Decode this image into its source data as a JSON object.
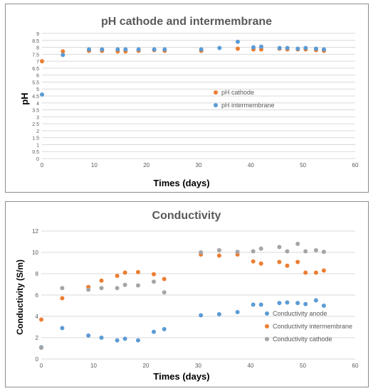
{
  "chart_data": [
    {
      "type": "scatter",
      "title": "pH cathode and intermembrane",
      "xlabel": "Times (days)",
      "ylabel": "pH",
      "xlim": [
        0,
        60
      ],
      "ylim": [
        0,
        9
      ],
      "x_ticks": [
        "0",
        "10",
        "20",
        "30",
        "40",
        "50",
        "60"
      ],
      "y_ticks": [
        "0",
        "0.5",
        "1",
        "1.5",
        "2",
        "2.5",
        "3",
        "3.5",
        "4",
        "4.5",
        "5",
        "5.5",
        "6",
        "6.5",
        "7",
        "7.5",
        "8",
        "8.5",
        "9"
      ],
      "grid": "horizontal",
      "legend_position": "center-right",
      "series": [
        {
          "name": "pH cathode",
          "color": "#ED7D31",
          "points": [
            [
              0,
              7.0
            ],
            [
              4,
              7.7
            ],
            [
              9,
              7.75
            ],
            [
              11.5,
              7.75
            ],
            [
              14.5,
              7.7
            ],
            [
              16,
              7.7
            ],
            [
              18.5,
              7.75
            ],
            [
              21.5,
              7.8
            ],
            [
              23.5,
              7.75
            ],
            [
              30.5,
              7.75
            ],
            [
              37.5,
              7.9
            ],
            [
              40.5,
              7.85
            ],
            [
              42,
              7.85
            ],
            [
              45.5,
              7.9
            ],
            [
              47,
              7.85
            ],
            [
              49,
              7.85
            ],
            [
              50.5,
              7.85
            ],
            [
              52.5,
              7.8
            ],
            [
              54,
              7.75
            ]
          ]
        },
        {
          "name": "pH intermembrane",
          "color": "#5B9BD5",
          "points": [
            [
              0,
              4.6
            ],
            [
              4,
              7.45
            ],
            [
              9,
              7.85
            ],
            [
              11.5,
              7.85
            ],
            [
              14.5,
              7.85
            ],
            [
              16,
              7.85
            ],
            [
              18.5,
              7.85
            ],
            [
              21.5,
              7.85
            ],
            [
              23.5,
              7.85
            ],
            [
              30.5,
              7.85
            ],
            [
              34,
              7.95
            ],
            [
              37.5,
              8.4
            ],
            [
              40.5,
              8.0
            ],
            [
              42,
              8.05
            ],
            [
              45.5,
              7.95
            ],
            [
              47,
              7.95
            ],
            [
              49,
              7.9
            ],
            [
              50.5,
              7.95
            ],
            [
              52.5,
              7.9
            ],
            [
              54,
              7.85
            ]
          ]
        }
      ]
    },
    {
      "type": "scatter",
      "title": "Conductivity",
      "xlabel": "Times (days)",
      "ylabel": "Conductivity (S/m)",
      "xlim": [
        0,
        60
      ],
      "ylim": [
        0,
        12
      ],
      "x_ticks": [
        "0",
        "10",
        "20",
        "30",
        "40",
        "50",
        "60"
      ],
      "y_ticks": [
        "0",
        "2",
        "4",
        "6",
        "8",
        "10",
        "12"
      ],
      "grid": "horizontal",
      "legend_position": "bottom-right",
      "series": [
        {
          "name": "Conductivity anode",
          "color": "#5B9BD5",
          "points": [
            [
              0,
              1.1
            ],
            [
              4,
              2.9
            ],
            [
              9,
              2.2
            ],
            [
              11.5,
              2.0
            ],
            [
              14.5,
              1.75
            ],
            [
              16,
              1.9
            ],
            [
              18.5,
              1.75
            ],
            [
              21.5,
              2.55
            ],
            [
              23.5,
              2.8
            ],
            [
              30.5,
              4.1
            ],
            [
              34,
              4.2
            ],
            [
              37.5,
              4.4
            ],
            [
              40.5,
              5.1
            ],
            [
              42,
              5.1
            ],
            [
              45.5,
              5.25
            ],
            [
              47,
              5.3
            ],
            [
              49,
              5.25
            ],
            [
              50.5,
              5.15
            ],
            [
              52.5,
              5.5
            ],
            [
              54,
              5.0
            ]
          ]
        },
        {
          "name": "Conductivity intermembrane",
          "color": "#ED7D31",
          "points": [
            [
              0,
              3.7
            ],
            [
              4,
              5.7
            ],
            [
              9,
              6.75
            ],
            [
              11.5,
              7.35
            ],
            [
              14.5,
              7.8
            ],
            [
              16,
              8.1
            ],
            [
              18.5,
              8.15
            ],
            [
              21.5,
              7.95
            ],
            [
              23.5,
              7.5
            ],
            [
              30.5,
              9.8
            ],
            [
              34,
              9.7
            ],
            [
              37.5,
              9.8
            ],
            [
              40.5,
              9.15
            ],
            [
              42,
              8.95
            ],
            [
              45.5,
              9.1
            ],
            [
              47,
              8.75
            ],
            [
              49,
              9.1
            ],
            [
              50.5,
              8.1
            ],
            [
              52.5,
              8.1
            ],
            [
              54,
              8.3
            ]
          ]
        },
        {
          "name": "Conductivity cathode",
          "color": "#A5A5A5",
          "points": [
            [
              0,
              1.05
            ],
            [
              4,
              6.65
            ],
            [
              9,
              6.5
            ],
            [
              11.5,
              6.65
            ],
            [
              14.5,
              6.65
            ],
            [
              16,
              6.95
            ],
            [
              18.5,
              6.9
            ],
            [
              21.5,
              7.25
            ],
            [
              23.5,
              6.25
            ],
            [
              30.5,
              10.0
            ],
            [
              34,
              10.2
            ],
            [
              37.5,
              10.05
            ],
            [
              40.5,
              10.1
            ],
            [
              42,
              10.35
            ],
            [
              45.5,
              10.5
            ],
            [
              47,
              10.1
            ],
            [
              49,
              10.8
            ],
            [
              50.5,
              10.1
            ],
            [
              52.5,
              10.2
            ],
            [
              54,
              10.05
            ]
          ]
        }
      ]
    }
  ]
}
